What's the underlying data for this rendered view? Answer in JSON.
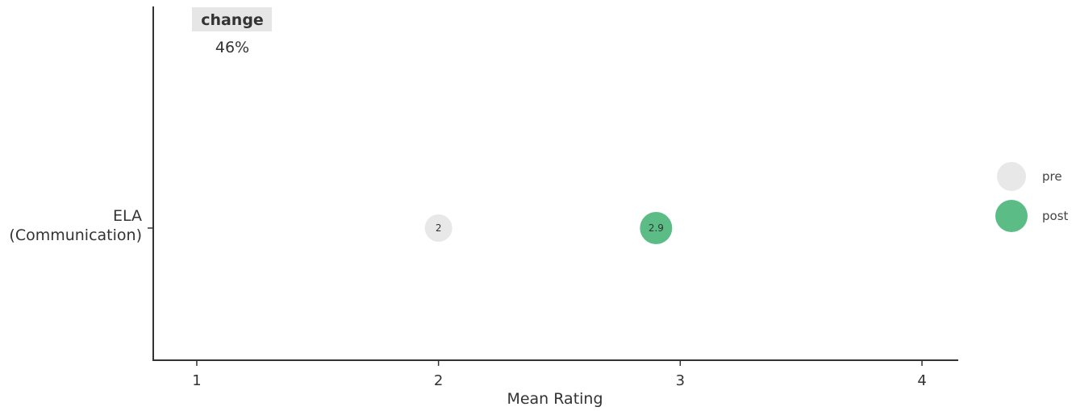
{
  "chart_data": {
    "type": "scatter",
    "xlabel": "Mean Rating",
    "ylabel": "",
    "xlim": [
      0.82,
      4.15
    ],
    "x_ticks": [
      "1",
      "2",
      "3",
      "4"
    ],
    "categories": [
      "ELA\n(Communication)"
    ],
    "series": [
      {
        "name": "pre",
        "values": [
          2
        ],
        "labels": [
          "2"
        ],
        "color": "#e8e8e8"
      },
      {
        "name": "post",
        "values": [
          2.9
        ],
        "labels": [
          "2.9"
        ],
        "color": "#5bbd85"
      }
    ],
    "change_column": {
      "title": "change",
      "values": [
        "46%"
      ],
      "header_bg": "#e6e6e6"
    },
    "legend_position": "right",
    "grid": false
  }
}
